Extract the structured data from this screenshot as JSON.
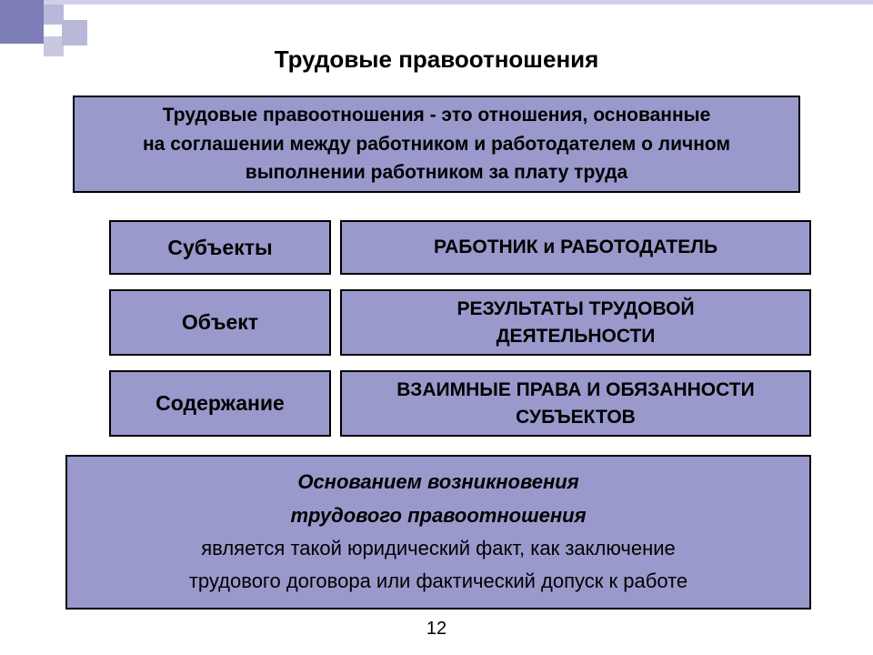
{
  "colors": {
    "box_fill": "#9999cc",
    "box_border": "#000000",
    "background": "#ffffff",
    "text": "#000000",
    "deco_dark": "#7d7db8",
    "deco_mid": "#b8b8d8",
    "deco_light": "#c8c8e0"
  },
  "typography": {
    "title_fontsize": 26,
    "box_label_fontsize": 23,
    "box_content_fontsize": 21,
    "footer_fontsize": 22,
    "page_number_fontsize": 20
  },
  "title": "Трудовые правоотношения",
  "definition": {
    "line1": "Трудовые правоотношения - это отношения, основанные",
    "line2": "на соглашении между работником и работодателем о личном",
    "line3": "выполнении работником за плату труда"
  },
  "rows": [
    {
      "label": "Субъекты",
      "content": "РАБОТНИК и РАБОТОДАТЕЛЬ"
    },
    {
      "label": "Объект",
      "content_line1": "РЕЗУЛЬТАТЫ ТРУДОВОЙ",
      "content_line2": "ДЕЯТЕЛЬНОСТИ"
    },
    {
      "label": "Содержание",
      "content_line1": "ВЗАИМНЫЕ ПРАВА И ОБЯЗАННОСТИ",
      "content_line2": "СУБЪЕКТОВ"
    }
  ],
  "footer": {
    "line1": "Основанием возникновения",
    "line2": "трудового правоотношения",
    "line3": "является такой юридический факт,  как заключение",
    "line4": "трудового договора или фактический допуск к работе"
  },
  "page_number": "12"
}
